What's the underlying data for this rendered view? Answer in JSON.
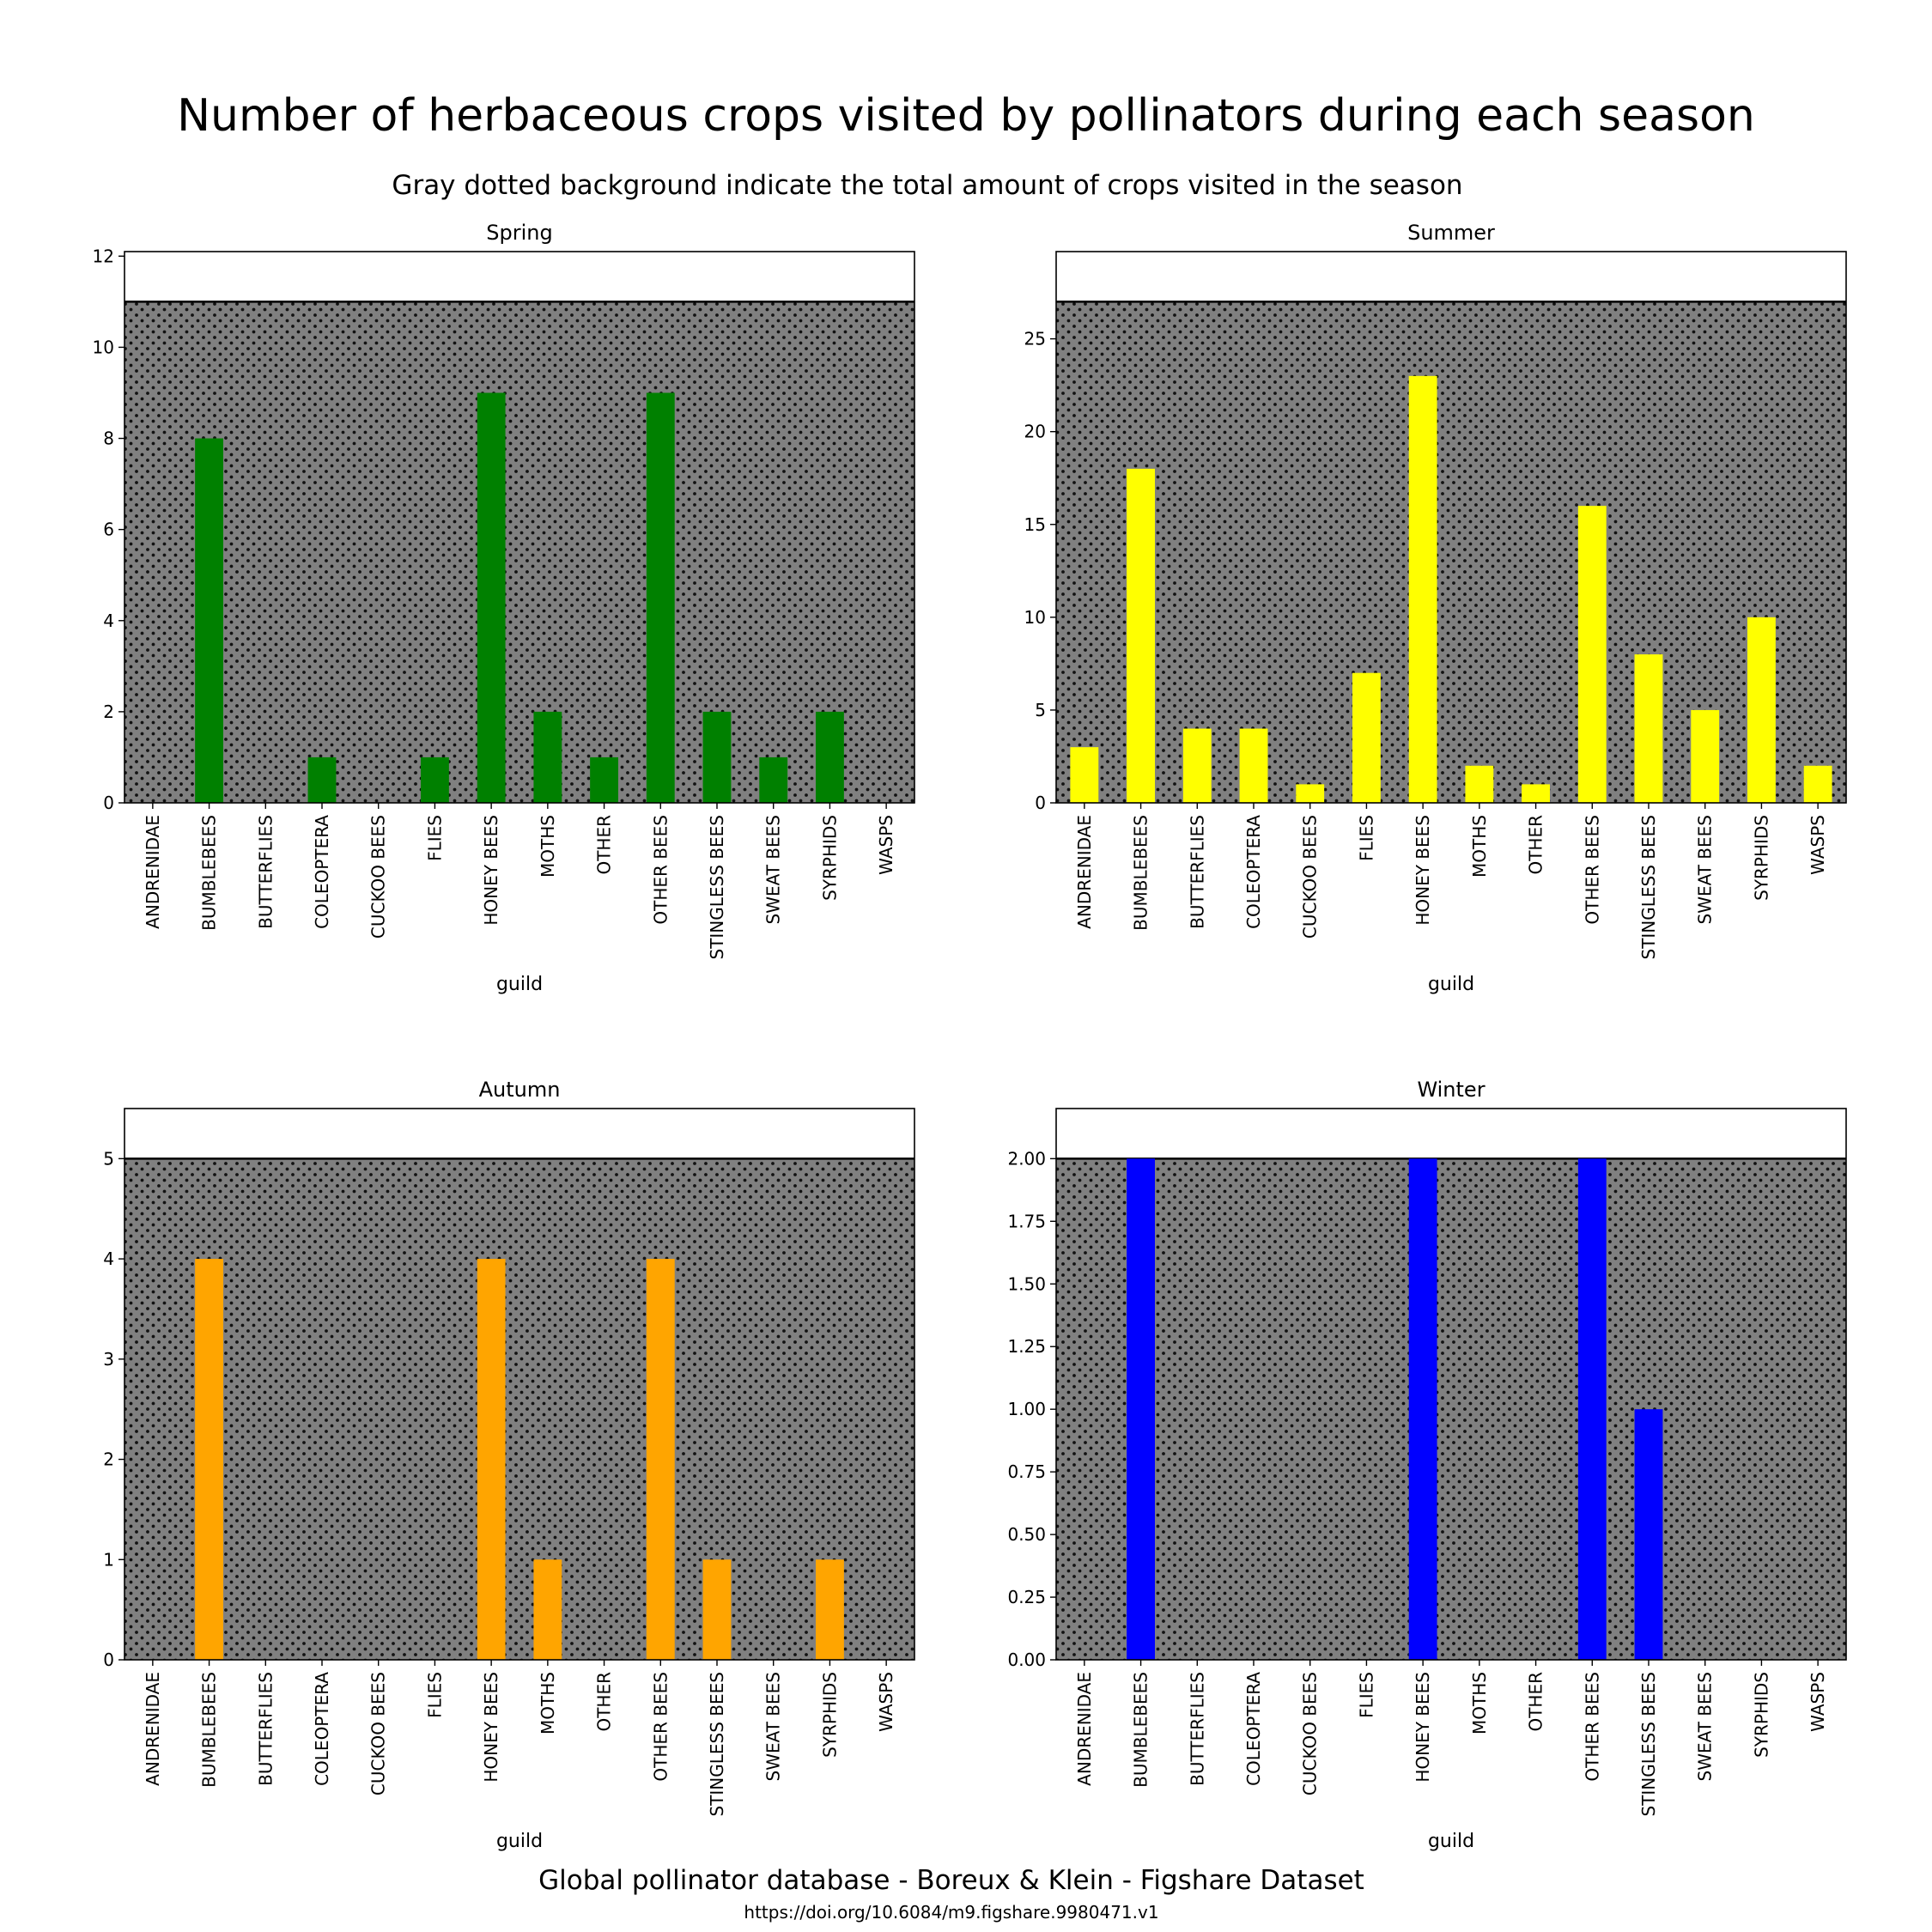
{
  "figure": {
    "title": "Number of herbaceous crops visited by pollinators during each season",
    "subtitle": "Gray dotted background indicate the total amount of crops visited in the season",
    "footer": "Global pollinator database - Boreux & Klein - Figshare Dataset",
    "doi": "https://doi.org/10.6084/m9.figshare.9980471.v1"
  },
  "chart_data": [
    {
      "type": "bar",
      "title": "Spring",
      "xlabel": "guild",
      "ylabel": "",
      "color": "#008000",
      "background_color": "#808080",
      "background_total": 11,
      "ylim": [
        0,
        12.1
      ],
      "yticks": [
        "0",
        "2",
        "4",
        "6",
        "8",
        "10",
        "12"
      ],
      "yticks_values": [
        0,
        2,
        4,
        6,
        8,
        10,
        12
      ],
      "categories": [
        "ANDRENIDAE",
        "BUMBLEBEES",
        "BUTTERFLIES",
        "COLEOPTERA",
        "CUCKOO BEES",
        "FLIES",
        "HONEY BEES",
        "MOTHS",
        "OTHER",
        "OTHER BEES",
        "STINGLESS BEES",
        "SWEAT BEES",
        "SYRPHIDS",
        "WASPS"
      ],
      "values": [
        0,
        8,
        0,
        1,
        0,
        1,
        9,
        2,
        1,
        9,
        2,
        1,
        2,
        0
      ]
    },
    {
      "type": "bar",
      "title": "Summer",
      "xlabel": "guild",
      "ylabel": "",
      "color": "#ffff00",
      "background_color": "#808080",
      "background_total": 27,
      "ylim": [
        0,
        29.7
      ],
      "yticks": [
        "0",
        "5",
        "10",
        "15",
        "20",
        "25"
      ],
      "yticks_values": [
        0,
        5,
        10,
        15,
        20,
        25
      ],
      "categories": [
        "ANDRENIDAE",
        "BUMBLEBEES",
        "BUTTERFLIES",
        "COLEOPTERA",
        "CUCKOO BEES",
        "FLIES",
        "HONEY BEES",
        "MOTHS",
        "OTHER",
        "OTHER BEES",
        "STINGLESS BEES",
        "SWEAT BEES",
        "SYRPHIDS",
        "WASPS"
      ],
      "values": [
        3,
        18,
        4,
        4,
        1,
        7,
        23,
        2,
        1,
        16,
        8,
        5,
        10,
        2
      ]
    },
    {
      "type": "bar",
      "title": "Autumn",
      "xlabel": "guild",
      "ylabel": "",
      "color": "#ffa500",
      "background_color": "#808080",
      "background_total": 5,
      "ylim": [
        0,
        5.5
      ],
      "yticks": [
        "0",
        "1",
        "2",
        "3",
        "4",
        "5"
      ],
      "yticks_values": [
        0,
        1,
        2,
        3,
        4,
        5
      ],
      "categories": [
        "ANDRENIDAE",
        "BUMBLEBEES",
        "BUTTERFLIES",
        "COLEOPTERA",
        "CUCKOO BEES",
        "FLIES",
        "HONEY BEES",
        "MOTHS",
        "OTHER",
        "OTHER BEES",
        "STINGLESS BEES",
        "SWEAT BEES",
        "SYRPHIDS",
        "WASPS"
      ],
      "values": [
        0,
        4,
        0,
        0,
        0,
        0,
        4,
        1,
        0,
        4,
        1,
        0,
        1,
        0
      ]
    },
    {
      "type": "bar",
      "title": "Winter",
      "xlabel": "guild",
      "ylabel": "",
      "color": "#0000ff",
      "background_color": "#808080",
      "background_total": 2,
      "ylim": [
        0,
        2.2
      ],
      "yticks": [
        "0.00",
        "0.25",
        "0.50",
        "0.75",
        "1.00",
        "1.25",
        "1.50",
        "1.75",
        "2.00"
      ],
      "yticks_values": [
        0,
        0.25,
        0.5,
        0.75,
        1,
        1.25,
        1.5,
        1.75,
        2
      ],
      "categories": [
        "ANDRENIDAE",
        "BUMBLEBEES",
        "BUTTERFLIES",
        "COLEOPTERA",
        "CUCKOO BEES",
        "FLIES",
        "HONEY BEES",
        "MOTHS",
        "OTHER",
        "OTHER BEES",
        "STINGLESS BEES",
        "SWEAT BEES",
        "SYRPHIDS",
        "WASPS"
      ],
      "values": [
        0,
        2,
        0,
        0,
        0,
        0,
        2,
        0,
        0,
        2,
        1,
        0,
        0,
        0
      ]
    }
  ]
}
